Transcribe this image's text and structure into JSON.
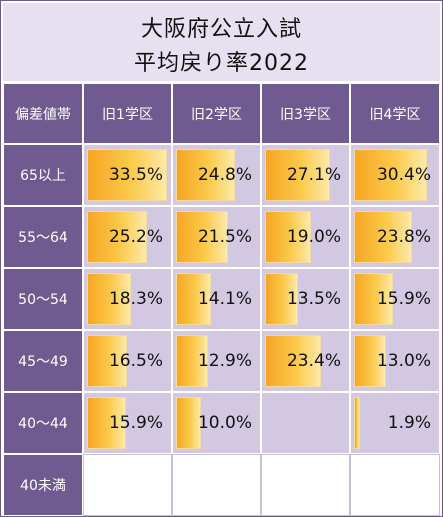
{
  "title": {
    "line1": "大阪府公立入試",
    "line2": "平均戻り率2022"
  },
  "corner_label": "偏差値帯",
  "chart_data": {
    "type": "table",
    "title": "大阪府公立入試 平均戻り率2022",
    "columns": [
      "旧1学区",
      "旧2学区",
      "旧3学区",
      "旧4学区"
    ],
    "rows": [
      "65以上",
      "55～64",
      "50～54",
      "45～49",
      "40～44",
      "40未満"
    ],
    "values": [
      [
        33.5,
        24.8,
        27.1,
        30.4
      ],
      [
        25.2,
        21.5,
        19.0,
        23.8
      ],
      [
        18.3,
        14.1,
        13.5,
        15.9
      ],
      [
        16.5,
        12.9,
        23.4,
        13.0
      ],
      [
        15.9,
        10.0,
        null,
        1.9
      ],
      [
        null,
        null,
        null,
        null
      ]
    ],
    "value_labels": [
      [
        "33.5%",
        "24.8%",
        "27.1%",
        "30.4%"
      ],
      [
        "25.2%",
        "21.5%",
        "19.0%",
        "23.8%"
      ],
      [
        "18.3%",
        "14.1%",
        "13.5%",
        "15.9%"
      ],
      [
        "16.5%",
        "12.9%",
        "23.4%",
        "13.0%"
      ],
      [
        "15.9%",
        "10.0%",
        "",
        "1.9%"
      ],
      [
        "",
        "",
        "",
        ""
      ]
    ],
    "bar_max": 35,
    "colors": {
      "header": "#6f5b8f",
      "cell": "#d2c8e2",
      "bar_start": "#f6a623",
      "bar_end": "#fde9a8"
    }
  }
}
